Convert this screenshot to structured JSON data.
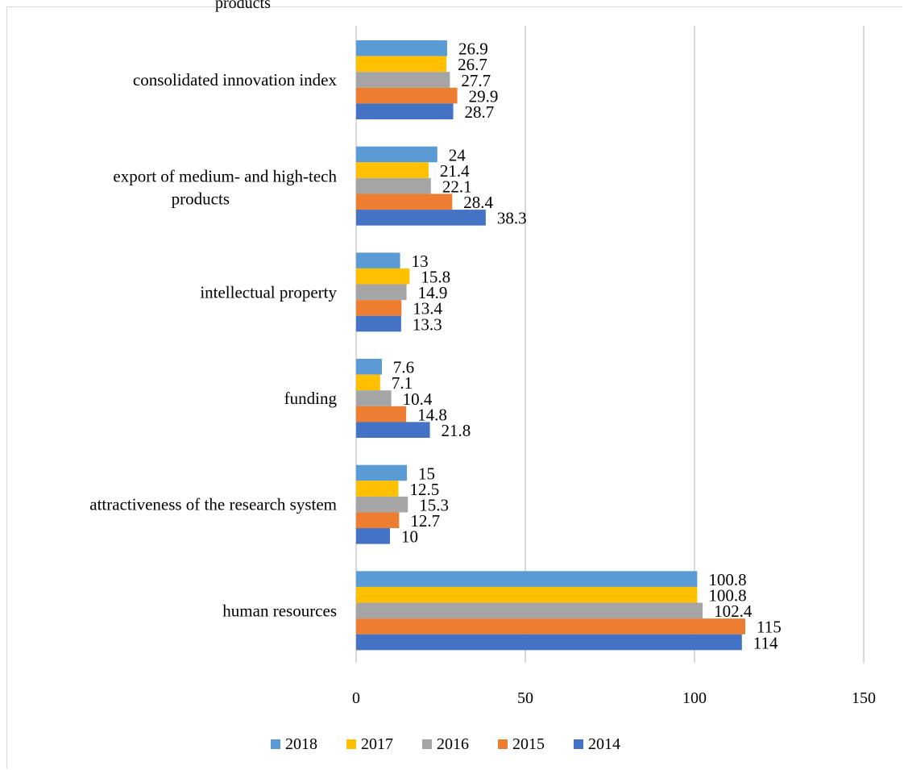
{
  "caption": "products",
  "chart_data": {
    "type": "bar",
    "orientation": "horizontal",
    "categories": [
      "consolidated innovation index",
      "export of medium- and high-tech products",
      "intellectual property",
      "funding",
      "attractiveness of the research system",
      "human resources"
    ],
    "series": [
      {
        "name": "2018",
        "color": "#5b9bd5",
        "values": [
          26.9,
          24,
          13,
          7.6,
          15,
          100.8
        ],
        "labels": [
          "26.9",
          "24",
          "13",
          "7.6",
          "15",
          "100.8"
        ]
      },
      {
        "name": "2017",
        "color": "#ffc000",
        "values": [
          26.7,
          21.4,
          15.8,
          7.1,
          12.5,
          100.8
        ],
        "labels": [
          "26.7",
          "21.4",
          "15.8",
          "7.1",
          "12.5",
          "100.8"
        ]
      },
      {
        "name": "2016",
        "color": "#a5a5a5",
        "values": [
          27.7,
          22.1,
          14.9,
          10.4,
          15.3,
          102.4
        ],
        "labels": [
          "27.7",
          "22.1",
          "14.9",
          "10.4",
          "15.3",
          "102.4"
        ]
      },
      {
        "name": "2015",
        "color": "#ed7d31",
        "values": [
          29.9,
          28.4,
          13.4,
          14.8,
          12.7,
          115
        ],
        "labels": [
          "29.9",
          "28.4",
          "13.4",
          "14.8",
          "12.7",
          "115"
        ]
      },
      {
        "name": "2014",
        "color": "#4472c4",
        "values": [
          28.7,
          38.3,
          13.3,
          21.8,
          10,
          114
        ],
        "labels": [
          "28.7",
          "38.3",
          "13.3",
          "21.8",
          "10",
          "114"
        ]
      }
    ],
    "xlim": [
      0,
      150
    ],
    "xticks": [
      "0",
      "50",
      "100",
      "150"
    ],
    "grid": "vertical",
    "legend": "bottom",
    "title": "",
    "xlabel": "",
    "ylabel": ""
  }
}
